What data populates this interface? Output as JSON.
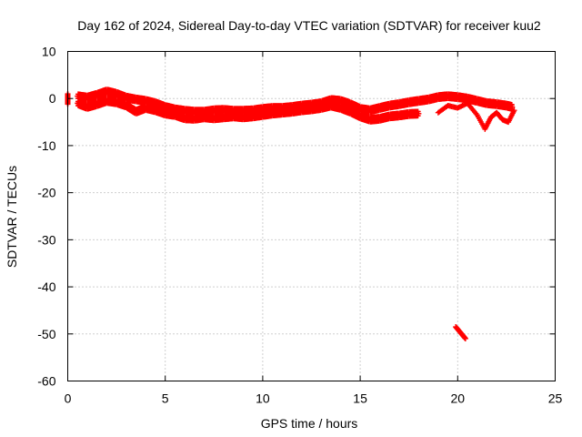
{
  "chart_data": {
    "type": "scatter",
    "title": "Day 162 of 2024, Sidereal Day-to-day VTEC variation (SDTVAR) for receiver kuu2",
    "xlabel": "GPS time / hours",
    "ylabel": "SDTVAR / TECUs",
    "xlim": [
      0,
      25
    ],
    "ylim": [
      -60,
      10
    ],
    "x_ticks": [
      0,
      5,
      10,
      15,
      20,
      25
    ],
    "y_ticks": [
      10,
      0,
      -10,
      -20,
      -30,
      -40,
      -50,
      -60
    ],
    "x_tick_labels": [
      "0",
      "5",
      "10",
      "15",
      "20",
      "25"
    ],
    "y_tick_labels": [
      "10",
      "0",
      "-10",
      "-20",
      "-30",
      "-40",
      "-50",
      "-60"
    ],
    "grid": true,
    "legend": "none",
    "marker": "plus",
    "color": "#ff0000",
    "series": [
      {
        "name": "main-band-upper",
        "x": [
          0.5,
          1.0,
          1.5,
          2.0,
          2.5,
          3.0,
          3.5,
          4.0,
          4.5,
          5.0,
          5.5,
          6.0,
          6.5,
          7.0,
          7.5,
          8.0,
          8.5,
          9.0,
          9.5,
          10.0,
          10.5,
          11.0,
          11.5,
          12.0,
          12.5,
          13.0,
          13.5,
          14.0,
          14.5,
          15.0,
          15.5,
          16.0,
          16.5,
          17.0,
          17.5,
          18.0,
          18.5,
          19.0,
          19.5,
          20.0,
          20.5,
          21.0,
          21.5,
          22.0,
          22.5,
          22.8
        ],
        "y": [
          0.5,
          0.2,
          0.8,
          1.5,
          1.0,
          0.2,
          -0.2,
          -0.5,
          -1.0,
          -1.8,
          -2.3,
          -2.6,
          -2.8,
          -2.8,
          -2.5,
          -2.4,
          -2.6,
          -2.6,
          -2.5,
          -2.2,
          -2.0,
          -2.0,
          -1.8,
          -1.5,
          -1.3,
          -1.0,
          -0.3,
          -0.5,
          -1.2,
          -2.2,
          -2.5,
          -2.0,
          -1.5,
          -1.2,
          -0.8,
          -0.5,
          -0.2,
          0.3,
          0.5,
          0.3,
          0.0,
          -0.5,
          -1.0,
          -1.2,
          -1.5,
          -1.8
        ]
      },
      {
        "name": "main-band-lower",
        "x": [
          0.5,
          1.0,
          1.5,
          2.0,
          2.5,
          3.0,
          3.5,
          4.0,
          4.5,
          5.0,
          5.5,
          6.0,
          6.5,
          7.0,
          7.5,
          8.0,
          8.5,
          9.0,
          9.5,
          10.0,
          10.5,
          11.0,
          11.5,
          12.0,
          12.5,
          13.0,
          13.5,
          14.0,
          14.5,
          15.0,
          15.5,
          16.0,
          16.5,
          17.0,
          17.5,
          18.0
        ],
        "y": [
          -1.0,
          -1.8,
          -1.2,
          -0.5,
          -0.8,
          -1.5,
          -2.8,
          -2.0,
          -2.5,
          -3.2,
          -3.5,
          -4.2,
          -4.3,
          -4.0,
          -4.2,
          -4.0,
          -3.8,
          -4.0,
          -3.8,
          -3.5,
          -3.2,
          -3.0,
          -2.8,
          -2.5,
          -2.3,
          -2.0,
          -1.5,
          -2.0,
          -2.8,
          -3.8,
          -4.5,
          -4.3,
          -3.8,
          -3.6,
          -3.3,
          -3.2
        ]
      },
      {
        "name": "left-edge-markers",
        "x": [
          0.0,
          0.0,
          0.0
        ],
        "y": [
          1.0,
          0.0,
          -1.2
        ]
      },
      {
        "name": "evening-scatter",
        "x": [
          19.0,
          19.5,
          20.0,
          20.5,
          21.0,
          21.4,
          21.7,
          22.0,
          22.3,
          22.6,
          22.9
        ],
        "y": [
          -3.0,
          -1.5,
          -2.0,
          -1.0,
          -3.5,
          -6.5,
          -4.0,
          -3.0,
          -4.5,
          -5.0,
          -2.5
        ]
      },
      {
        "name": "outlier-cluster",
        "x": [
          19.9,
          20.0,
          20.1,
          20.2,
          20.3,
          20.4
        ],
        "y": [
          -48.5,
          -49.0,
          -49.5,
          -50.0,
          -50.5,
          -51.0
        ]
      }
    ]
  }
}
